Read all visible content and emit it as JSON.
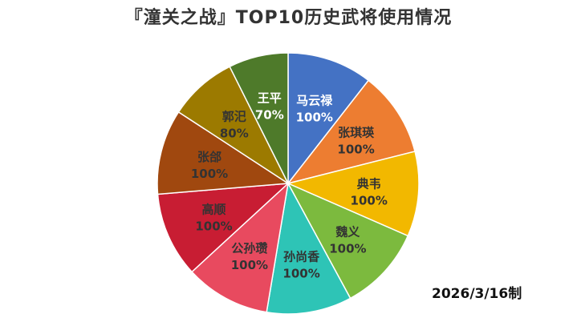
{
  "chart_data": {
    "type": "pie",
    "title": "『潼关之战』TOP10历史武将使用情况",
    "categories": [
      "马云禄",
      "张琪瑛",
      "典韦",
      "魏义",
      "孙尚香",
      "公孙瓒",
      "高顺",
      "张郃",
      "郭汜",
      "王平"
    ],
    "values": [
      100,
      100,
      100,
      100,
      100,
      100,
      100,
      100,
      80,
      70
    ],
    "value_labels": [
      "100%",
      "100%",
      "100%",
      "100%",
      "100%",
      "100%",
      "100%",
      "100%",
      "80%",
      "70%"
    ],
    "colors": [
      "#4472c4",
      "#ed7d31",
      "#f2b800",
      "#7cba3e",
      "#2ec4b6",
      "#e84a5f",
      "#c81d33",
      "#a0480f",
      "#9c7a00",
      "#4e7a2a"
    ],
    "label_colors": [
      "#ffffff",
      "#333333",
      "#333333",
      "#333333",
      "#333333",
      "#333333",
      "#333333",
      "#333333",
      "#333333",
      "#ffffff"
    ],
    "start": "12 o'clock",
    "direction": "clockwise",
    "legend": "none"
  },
  "footer": {
    "date_text": "2026/3/16制"
  }
}
